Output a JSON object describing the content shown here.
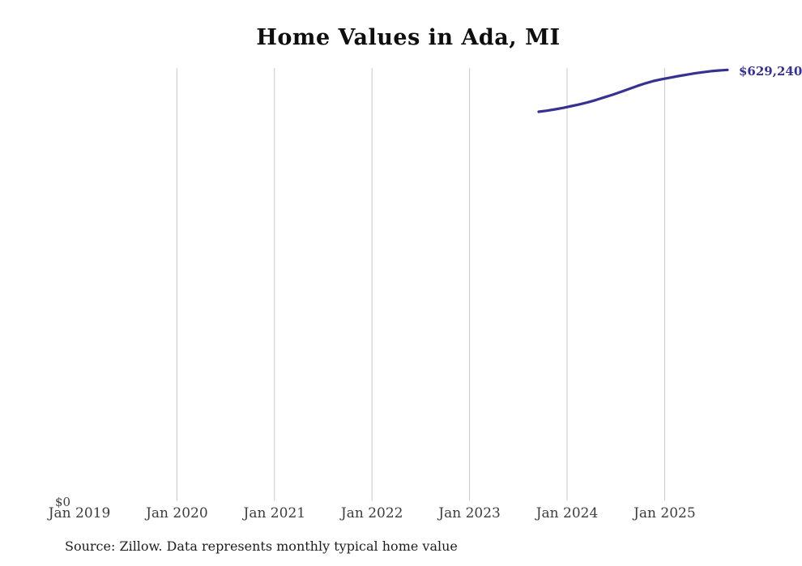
{
  "colors": {
    "line": "#37328f",
    "grid": "#c9c9c9",
    "tick_text": "#3d3d3d",
    "title_text": "#0e0e0e",
    "source_text": "#1d1d1d",
    "background": "#ffffff"
  },
  "chart_data": {
    "type": "line",
    "title": "Home Values in Ada, MI",
    "source": "Source: Zillow. Data represents monthly typical home value",
    "end_label": "$629,240",
    "xlabel": "",
    "ylabel": "",
    "legend_position": "none",
    "grid": "vertical-only",
    "y_axis": {
      "min": 0,
      "zero_label": "$0",
      "max_shown_value": 629240
    },
    "x_ticks": [
      {
        "label": "Jan 2019",
        "gridline": false
      },
      {
        "label": "Jan 2020",
        "gridline": true
      },
      {
        "label": "Jan 2021",
        "gridline": true
      },
      {
        "label": "Jan 2022",
        "gridline": true
      },
      {
        "label": "Jan 2023",
        "gridline": true
      },
      {
        "label": "Jan 2024",
        "gridline": true
      },
      {
        "label": "Jan 2025",
        "gridline": true
      }
    ],
    "series": [
      {
        "name": "Monthly typical home value",
        "x": [
          "Sep 2023",
          "Oct 2023",
          "Nov 2023",
          "Dec 2023",
          "Jan 2024",
          "Feb 2024",
          "Mar 2024",
          "Apr 2024",
          "May 2024",
          "Jun 2024",
          "Jul 2024",
          "Aug 2024",
          "Sep 2024",
          "Oct 2024",
          "Nov 2024",
          "Dec 2024",
          "Jan 2025",
          "Feb 2025",
          "Mar 2025",
          "Apr 2025",
          "May 2025",
          "Jun 2025",
          "Jul 2025",
          "Aug 2025"
        ],
        "values": [
          568100,
          569700,
          571700,
          573800,
          576400,
          579000,
          582000,
          585400,
          589200,
          593000,
          597100,
          601300,
          605700,
          609600,
          613000,
          615700,
          617900,
          620100,
          622200,
          624100,
          625800,
          627300,
          628400,
          629240
        ]
      }
    ]
  }
}
